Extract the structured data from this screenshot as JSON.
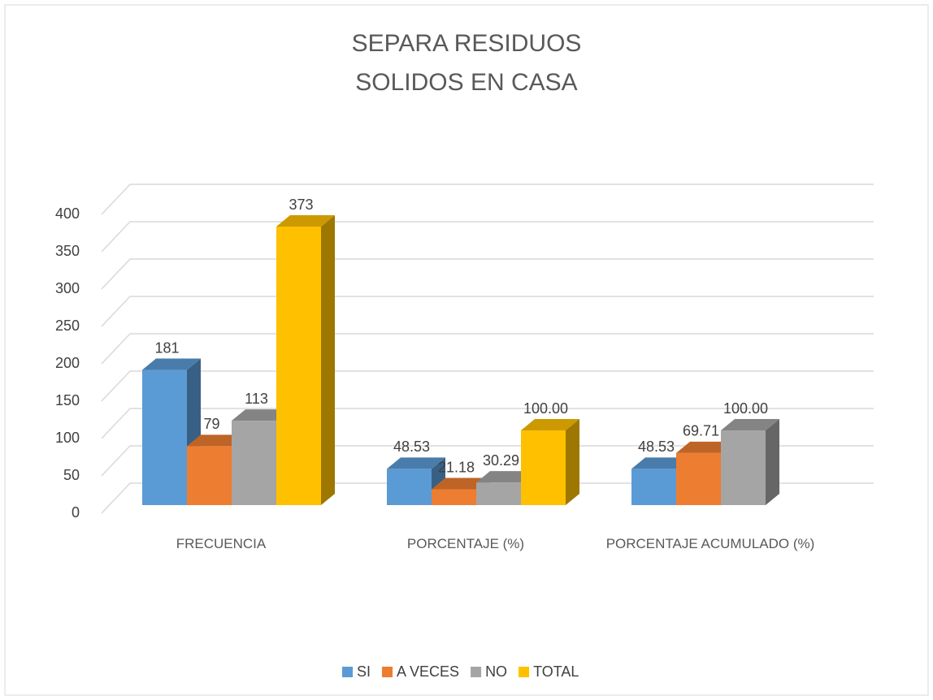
{
  "chart_data": {
    "type": "bar3d",
    "title": "SEPARA RESIDUOS SOLIDOS EN CASA",
    "categories": [
      "FRECUENCIA",
      "PORCENTAJE (%)",
      "PORCENTAJE ACUMULADO (%)"
    ],
    "series": [
      {
        "name": "SI",
        "color": "#5b9bd5",
        "values": [
          181,
          48.53,
          48.53
        ],
        "value_labels": [
          "181",
          "48.53",
          "48.53"
        ]
      },
      {
        "name": "A VECES",
        "color": "#ed7d31",
        "values": [
          79,
          21.18,
          69.71
        ],
        "value_labels": [
          "79",
          "21.18",
          "69.71"
        ]
      },
      {
        "name": "NO",
        "color": "#a5a5a5",
        "values": [
          113,
          30.29,
          100
        ],
        "value_labels": [
          "113",
          "30.29",
          "100.00"
        ]
      },
      {
        "name": "TOTAL",
        "color": "#ffc000",
        "values": [
          373,
          100,
          null
        ],
        "value_labels": [
          "373",
          "100.00",
          null
        ]
      }
    ],
    "ylim": [
      0,
      400
    ],
    "yticks": [
      0,
      50,
      100,
      150,
      200,
      250,
      300,
      350,
      400
    ],
    "grid": true,
    "legend": "bottom"
  }
}
